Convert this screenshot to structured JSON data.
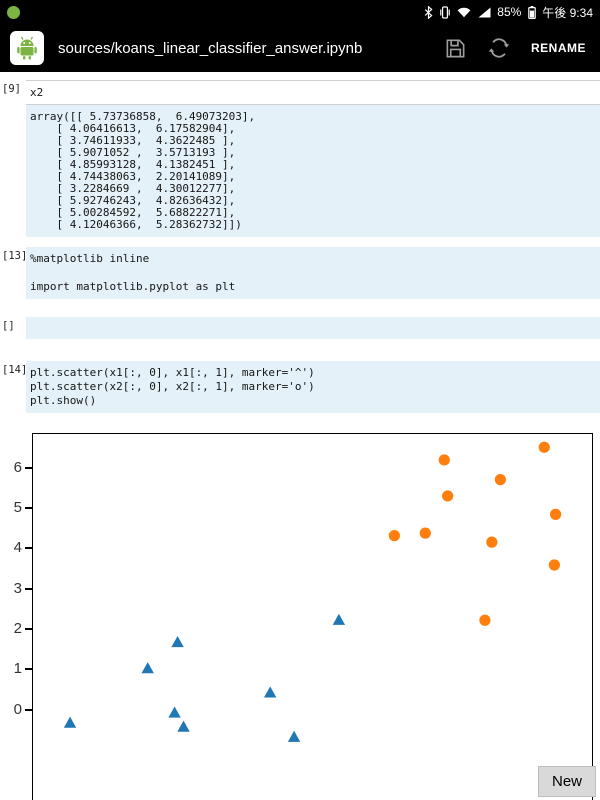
{
  "status_bar": {
    "time": "午後 9:34",
    "battery": "85%"
  },
  "app_bar": {
    "title": "sources/koans_linear_classifier_answer.ipynb",
    "rename_label": "RENAME"
  },
  "cells": [
    {
      "label": "[9]",
      "input": "x2",
      "output_lines": [
        "array([[ 5.73736858,  6.49073203],",
        "    [ 4.06416613,  6.17582904],",
        "    [ 3.74611933,  4.3622485 ],",
        "    [ 5.9071052 ,  3.5713193 ],",
        "    [ 4.85993128,  4.1382451 ],",
        "    [ 4.74438063,  2.20141089],",
        "    [ 3.2284669 ,  4.30012277],",
        "    [ 5.92746243,  4.82636432],",
        "    [ 5.00284592,  5.68822271],",
        "    [ 4.12046366,  5.28362732]])"
      ]
    },
    {
      "label": "[13]",
      "code_lines": [
        "%matplotlib inline",
        "",
        "import matplotlib.pyplot as plt"
      ]
    },
    {
      "label": "[]",
      "code_lines": []
    },
    {
      "label": "[14]",
      "code_lines": [
        "plt.scatter(x1[:, 0], x1[:, 1], marker='^')",
        "plt.scatter(x2[:, 0], x2[:, 1], marker='o')",
        "plt.show()"
      ]
    }
  ],
  "new_button": {
    "label": "New"
  },
  "chart_data": {
    "type": "scatter",
    "title": "",
    "xlabel": "",
    "ylabel": "",
    "grid": false,
    "legend": "none",
    "xlim": [
      -2.82,
      6.52
    ],
    "ylim": [
      -3.1,
      6.82
    ],
    "yticks": [
      0,
      1,
      2,
      3,
      4,
      5,
      6
    ],
    "note": "bottom of figure (x axis) cut off by screen edge",
    "series": [
      {
        "name": "x1",
        "marker": "triangle",
        "color": "#1f77b4",
        "points": [
          [
            -2.2,
            -0.35
          ],
          [
            -0.9,
            1.0
          ],
          [
            -0.45,
            -0.1
          ],
          [
            -0.4,
            1.65
          ],
          [
            -0.3,
            -0.45
          ],
          [
            1.15,
            0.4
          ],
          [
            1.55,
            -0.7
          ],
          [
            2.3,
            2.2
          ]
        ]
      },
      {
        "name": "x2",
        "marker": "circle",
        "color": "#ff7f0e",
        "points": [
          [
            5.73736858,
            6.49073203
          ],
          [
            4.06416613,
            6.17582904
          ],
          [
            3.74611933,
            4.3622485
          ],
          [
            5.9071052,
            3.5713193
          ],
          [
            4.85993128,
            4.1382451
          ],
          [
            4.74438063,
            2.20141089
          ],
          [
            3.2284669,
            4.30012277
          ],
          [
            5.92746243,
            4.82636432
          ],
          [
            5.00284592,
            5.68822271
          ],
          [
            4.12046366,
            5.28362732
          ]
        ]
      }
    ]
  },
  "colors": {
    "app_green": "#7cb342",
    "cell_bg": "#e4f1f8",
    "triangle_series": "#1f77b4",
    "circle_series": "#ff7f0e"
  }
}
